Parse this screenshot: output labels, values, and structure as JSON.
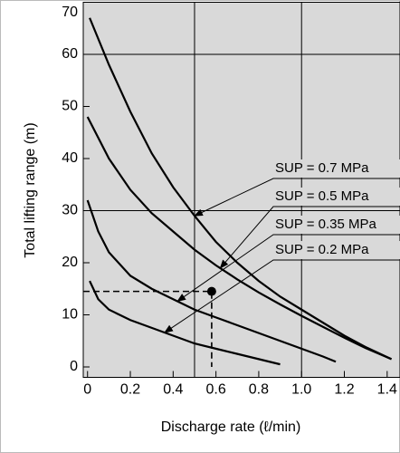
{
  "chart_data": {
    "type": "line",
    "x_label": "Discharge rate (ℓ/min)",
    "y_label": "Total lifting range (m)",
    "xlim": [
      -0.02,
      1.46
    ],
    "ylim": [
      -2,
      70
    ],
    "xticks": [
      0,
      0.2,
      0.4,
      0.6,
      0.8,
      {
        "value": 1,
        "label": "1.0"
      },
      1.2,
      1.4
    ],
    "yticks": [
      0,
      10,
      20,
      30,
      40,
      50,
      60,
      70
    ],
    "x_grid": [
      0.5,
      1
    ],
    "y_grid": [
      30,
      60
    ],
    "background": "#d9d9d9",
    "series": [
      {
        "name": "SUP = 0.7 MPa",
        "color": "#000000",
        "x": [
          0.01,
          0.1,
          0.2,
          0.3,
          0.4,
          0.5,
          0.6,
          0.7,
          0.8,
          0.9,
          1.0,
          1.1,
          1.2,
          1.3,
          1.42
        ],
        "values": [
          67,
          58,
          49,
          41,
          34.5,
          29,
          24,
          20,
          16.5,
          13.5,
          11,
          8.5,
          6,
          3.8,
          1.5
        ]
      },
      {
        "name": "SUP = 0.5 MPa",
        "color": "#000000",
        "x": [
          0.0,
          0.1,
          0.2,
          0.3,
          0.4,
          0.5,
          0.6,
          0.7,
          0.8,
          0.9,
          1.0,
          1.1,
          1.2,
          1.3,
          1.42
        ],
        "values": [
          48,
          40,
          34,
          29.5,
          26,
          22.5,
          19.5,
          16.8,
          14.3,
          12,
          9.8,
          7.7,
          5.6,
          3.6,
          1.5
        ]
      },
      {
        "name": "SUP = 0.35 MPa",
        "color": "#000000",
        "x": [
          0.0,
          0.05,
          0.1,
          0.2,
          0.3,
          0.4,
          0.5,
          0.6,
          0.7,
          0.8,
          0.9,
          1.0,
          1.1,
          1.16
        ],
        "values": [
          32,
          26,
          22,
          17.5,
          15,
          13,
          11,
          9.5,
          8,
          6.5,
          5,
          3.5,
          2,
          1
        ]
      },
      {
        "name": "SUP = 0.2 MPa",
        "color": "#000000",
        "x": [
          0.01,
          0.05,
          0.1,
          0.2,
          0.3,
          0.4,
          0.5,
          0.6,
          0.7,
          0.8,
          0.9
        ],
        "values": [
          16.5,
          13,
          11,
          9,
          7.5,
          6,
          4.5,
          3.5,
          2.5,
          1.5,
          0.5
        ]
      }
    ],
    "marker": {
      "x": 0.58,
      "y": 14.5
    }
  }
}
